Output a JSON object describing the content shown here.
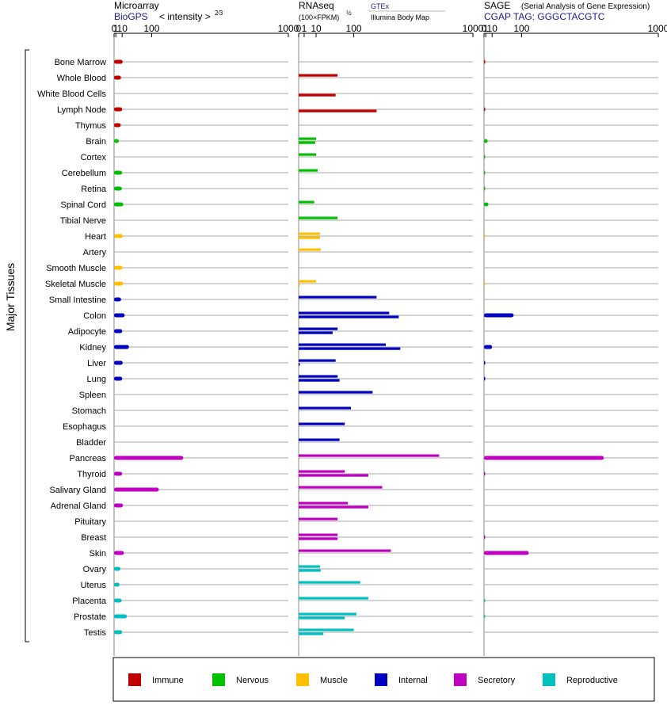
{
  "header": {
    "microarray": {
      "title": "Microarray",
      "source": "BioGPS",
      "scale": "< intensity >",
      "exponent": "2⁄3"
    },
    "rnaseq": {
      "title": "RNAseq",
      "scale": "(100×FPKM)",
      "exponent": "½",
      "source": "GTEx",
      "source2": "Illumina Body Map"
    },
    "sage": {
      "title": "SAGE",
      "subtitle": "(Serial Analysis of Gene Expression)",
      "tag": "CGAP TAG: GGGCTACGTC"
    }
  },
  "y_axis_label": "Major Tissues",
  "tick_labels": [
    "0",
    "1",
    "10",
    "100",
    "1000"
  ],
  "legend": [
    {
      "name": "Immune",
      "color": "#c00000"
    },
    {
      "name": "Nervous",
      "color": "#00c000"
    },
    {
      "name": "Muscle",
      "color": "#ffc000"
    },
    {
      "name": "Internal",
      "color": "#0000c0"
    },
    {
      "name": "Secretory",
      "color": "#c000c0"
    },
    {
      "name": "Reproductive",
      "color": "#00c0c0"
    }
  ],
  "chart_data": [
    {
      "type": "bar",
      "title": "Microarray",
      "scale": "power 2/3",
      "xlim": [
        0,
        1000
      ],
      "categories": [
        "Bone Marrow",
        "Whole Blood",
        "White Blood Cells",
        "Lymph Node",
        "Thymus",
        "Brain",
        "Cortex",
        "Cerebellum",
        "Retina",
        "Spinal Cord",
        "Tibial Nerve",
        "Heart",
        "Artery",
        "Smooth Muscle",
        "Skeletal Muscle",
        "Small Intestine",
        "Colon",
        "Adipocyte",
        "Kidney",
        "Liver",
        "Lung",
        "Spleen",
        "Stomach",
        "Esophagus",
        "Bladder",
        "Pancreas",
        "Thyroid",
        "Salivary Gland",
        "Adrenal Gland",
        "Pituitary",
        "Breast",
        "Skin",
        "Ovary",
        "Uterus",
        "Placenta",
        "Prostate",
        "Testis"
      ],
      "groups": [
        "Immune",
        "Immune",
        "Immune",
        "Immune",
        "Immune",
        "Nervous",
        "Nervous",
        "Nervous",
        "Nervous",
        "Nervous",
        "Nervous",
        "Muscle",
        "Muscle",
        "Muscle",
        "Muscle",
        "Internal",
        "Internal",
        "Internal",
        "Internal",
        "Internal",
        "Internal",
        "Internal",
        "Internal",
        "Internal",
        "Internal",
        "Secretory",
        "Secretory",
        "Secretory",
        "Secretory",
        "Secretory",
        "Secretory",
        "Secretory",
        "Reproductive",
        "Reproductive",
        "Reproductive",
        "Reproductive",
        "Reproductive"
      ],
      "values": [
        11,
        8,
        null,
        10,
        7.5,
        4.5,
        null,
        10,
        9.5,
        12,
        null,
        11,
        null,
        10.5,
        12,
        8,
        15,
        10,
        25,
        11,
        10,
        null,
        null,
        null,
        null,
        250,
        10,
        130,
        11.5,
        null,
        null,
        13.5,
        7,
        5.5,
        9,
        20,
        10
      ]
    },
    {
      "type": "bar",
      "title": "RNAseq",
      "scale": "square root",
      "xlim": [
        0,
        1000
      ],
      "categories": [
        "Bone Marrow",
        "Whole Blood",
        "White Blood Cells",
        "Lymph Node",
        "Thymus",
        "Brain",
        "Cortex",
        "Cerebellum",
        "Retina",
        "Spinal Cord",
        "Tibial Nerve",
        "Heart",
        "Artery",
        "Smooth Muscle",
        "Skeletal Muscle",
        "Small Intestine",
        "Colon",
        "Adipocyte",
        "Kidney",
        "Liver",
        "Lung",
        "Spleen",
        "Stomach",
        "Esophagus",
        "Bladder",
        "Pancreas",
        "Thyroid",
        "Salivary Gland",
        "Adrenal Gland",
        "Pituitary",
        "Breast",
        "Skin",
        "Ovary",
        "Uterus",
        "Placenta",
        "Prostate",
        "Testis"
      ],
      "series": [
        {
          "name": "GTEx",
          "values": [
            null,
            50,
            null,
            null,
            null,
            10,
            10,
            12,
            null,
            8,
            50,
            15,
            16,
            null,
            10,
            200,
            270,
            50,
            250,
            45,
            50,
            180,
            90,
            70,
            55,
            650,
            70,
            230,
            80,
            50,
            50,
            280,
            15,
            125,
            160,
            110,
            100
          ]
        },
        {
          "name": "Illumina Body Map",
          "values": [
            null,
            null,
            45,
            200,
            null,
            9,
            null,
            null,
            null,
            null,
            null,
            15,
            null,
            null,
            0,
            null,
            330,
            38,
            340,
            0,
            55,
            null,
            null,
            null,
            null,
            null,
            160,
            null,
            160,
            null,
            50,
            null,
            16,
            null,
            null,
            70,
            20
          ]
        }
      ]
    },
    {
      "type": "bar",
      "title": "SAGE",
      "scale": "power 2/3",
      "xlim": [
        0,
        1000
      ],
      "categories": [
        "Bone Marrow",
        "Whole Blood",
        "White Blood Cells",
        "Lymph Node",
        "Thymus",
        "Brain",
        "Cortex",
        "Cerebellum",
        "Retina",
        "Spinal Cord",
        "Tibial Nerve",
        "Heart",
        "Artery",
        "Smooth Muscle",
        "Skeletal Muscle",
        "Small Intestine",
        "Colon",
        "Adipocyte",
        "Kidney",
        "Liver",
        "Lung",
        "Spleen",
        "Stomach",
        "Esophagus",
        "Bladder",
        "Pancreas",
        "Thyroid",
        "Salivary Gland",
        "Adrenal Gland",
        "Pituitary",
        "Breast",
        "Skin",
        "Ovary",
        "Uterus",
        "Placenta",
        "Prostate",
        "Testis"
      ],
      "values": [
        0.2,
        null,
        null,
        0.2,
        null,
        3,
        0.1,
        0.1,
        0.1,
        4,
        null,
        0.05,
        null,
        null,
        0.05,
        null,
        70,
        null,
        10,
        0.3,
        0.3,
        null,
        null,
        null,
        null,
        570,
        0.2,
        null,
        null,
        null,
        0.2,
        130,
        null,
        null,
        0.1,
        0.1,
        null
      ]
    }
  ]
}
